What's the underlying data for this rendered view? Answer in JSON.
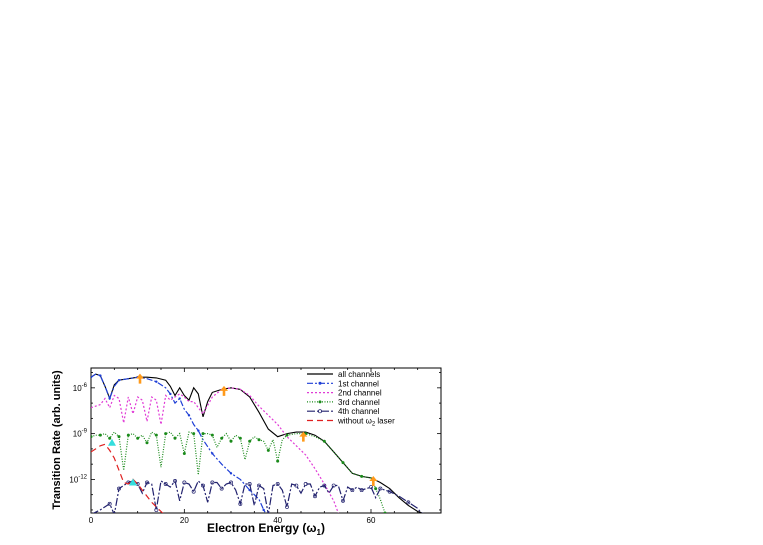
{
  "chart_data": {
    "type": "line",
    "title": "",
    "xlabel": "Electron Energy (ω",
    "xlabel_sub": "1",
    "xlabel_close": ")",
    "ylabel": "Transition Rate (arb. units)",
    "xlim": [
      0,
      75
    ],
    "ylim_log10": [
      -14.2,
      -4.7
    ],
    "yscale": "log",
    "x_ticks": [
      0,
      20,
      40,
      60
    ],
    "y_ticks": [
      {
        "base": "10",
        "exp": "-6",
        "log10": -6
      },
      {
        "base": "10",
        "exp": "-9",
        "log10": -9
      },
      {
        "base": "10",
        "exp": "-12",
        "log10": -12
      }
    ],
    "legend_position": "top-right",
    "grid": false,
    "series": [
      {
        "name": "all channels",
        "color": "#000000",
        "dash": "",
        "marker": "none",
        "x": [
          0,
          1,
          2,
          3,
          4,
          5,
          6,
          8,
          10,
          12,
          14,
          16,
          17,
          18,
          19,
          20,
          21,
          22,
          23,
          24,
          25,
          26,
          28,
          30,
          32,
          34,
          36,
          38,
          40,
          42,
          44,
          46,
          48,
          50,
          52,
          54,
          56,
          58,
          60,
          62,
          64,
          66,
          68,
          70,
          72
        ],
        "log10y": [
          -5.3,
          -5.1,
          -5.2,
          -5.9,
          -6.7,
          -5.8,
          -5.5,
          -5.4,
          -5.3,
          -5.3,
          -5.35,
          -5.5,
          -5.9,
          -6.5,
          -6.0,
          -6.5,
          -6.8,
          -6.0,
          -6.4,
          -7.9,
          -6.9,
          -6.3,
          -6.1,
          -6.0,
          -6.1,
          -6.6,
          -7.6,
          -8.7,
          -9.2,
          -9.0,
          -8.9,
          -8.9,
          -9.1,
          -9.5,
          -10.2,
          -10.9,
          -11.6,
          -11.8,
          -11.9,
          -12.2,
          -12.6,
          -13.2,
          -13.7,
          -14.1,
          -14.3
        ]
      },
      {
        "name": "1st channel",
        "color": "#1f3fd6",
        "dash": "6 2 2 2",
        "marker": "dot",
        "x": [
          0,
          1,
          2,
          3,
          4,
          5,
          6,
          8,
          10,
          12,
          14,
          16,
          17,
          18,
          19,
          20,
          21,
          22,
          23,
          24,
          26,
          28,
          30,
          32,
          34,
          36,
          37,
          38
        ],
        "log10y": [
          -5.3,
          -5.1,
          -5.2,
          -5.9,
          -6.7,
          -5.9,
          -5.5,
          -5.4,
          -5.3,
          -5.4,
          -5.6,
          -6.0,
          -6.4,
          -7.0,
          -6.7,
          -7.4,
          -7.8,
          -8.4,
          -8.8,
          -9.4,
          -10.3,
          -11.0,
          -11.6,
          -12.0,
          -12.7,
          -13.3,
          -14.0,
          -14.5
        ]
      },
      {
        "name": "2nd channel",
        "color": "#e03ad6",
        "dash": "2 2",
        "marker": "none",
        "x": [
          0,
          2,
          3,
          4,
          5,
          6,
          7,
          8,
          9,
          10,
          11,
          12,
          13,
          14,
          15,
          16,
          17,
          18,
          19,
          20,
          21,
          22,
          24,
          26,
          28,
          30,
          32,
          34,
          36,
          38,
          40,
          42,
          44,
          46,
          48,
          50,
          52,
          53
        ],
        "log10y": [
          -7.3,
          -7.1,
          -6.7,
          -7.3,
          -6.5,
          -6.7,
          -8.3,
          -6.6,
          -7.7,
          -6.6,
          -6.8,
          -8.2,
          -6.6,
          -6.8,
          -8.4,
          -6.5,
          -6.8,
          -6.6,
          -6.4,
          -6.6,
          -6.9,
          -6.9,
          -7.7,
          -6.6,
          -6.1,
          -6.0,
          -6.1,
          -6.5,
          -7.2,
          -7.8,
          -8.4,
          -9.2,
          -9.8,
          -10.4,
          -11.3,
          -12.3,
          -13.4,
          -14.2
        ]
      },
      {
        "name": "3rd channel",
        "color": "#1a8a1a",
        "dash": "1 1.5",
        "marker": "star",
        "x": [
          0,
          1,
          2,
          3,
          4,
          5,
          6,
          7,
          8,
          9,
          10,
          11,
          12,
          13,
          14,
          15,
          16,
          17,
          18,
          19,
          20,
          21,
          22,
          23,
          24,
          25,
          26,
          27,
          28,
          29,
          30,
          31,
          32,
          33,
          34,
          35,
          36,
          37,
          38,
          39,
          40,
          41,
          42,
          44,
          46,
          48,
          50,
          52,
          54,
          56,
          58,
          60,
          61,
          62,
          63
        ],
        "log10y": [
          -9.2,
          -9.1,
          -9.1,
          -9.0,
          -9.3,
          -8.9,
          -9.2,
          -11.4,
          -9.1,
          -9.0,
          -9.3,
          -9.1,
          -9.6,
          -8.9,
          -9.1,
          -11.2,
          -9.0,
          -8.9,
          -9.3,
          -9.0,
          -10.3,
          -8.9,
          -9.0,
          -11.7,
          -9.0,
          -9.0,
          -9.1,
          -9.9,
          -9.3,
          -9.0,
          -9.5,
          -9.1,
          -9.3,
          -10.7,
          -9.5,
          -9.2,
          -9.4,
          -9.5,
          -10.1,
          -9.4,
          -10.8,
          -9.4,
          -9.1,
          -9.0,
          -9.0,
          -9.2,
          -9.5,
          -10.2,
          -10.9,
          -11.6,
          -11.8,
          -11.9,
          -12.6,
          -13.3,
          -14.2
        ]
      },
      {
        "name": "4th channel",
        "color": "#22226e",
        "dash": "8 2 2 2",
        "marker": "circle",
        "x": [
          0,
          2,
          4,
          5,
          6,
          7,
          8,
          9,
          10,
          11,
          12,
          13,
          14,
          15,
          16,
          17,
          18,
          19,
          20,
          21,
          22,
          23,
          24,
          25,
          26,
          27,
          28,
          29,
          30,
          31,
          32,
          33,
          34,
          35,
          36,
          37,
          38,
          39,
          40,
          41,
          42,
          43,
          44,
          45,
          46,
          47,
          48,
          49,
          50,
          51,
          52,
          53,
          54,
          55,
          56,
          57,
          58,
          59,
          60,
          61,
          62,
          63,
          64,
          66,
          68,
          70,
          71
        ],
        "log10y": [
          -14.3,
          -14.0,
          -13.6,
          -14.3,
          -12.6,
          -12.4,
          -12.2,
          -12.1,
          -12.3,
          -12.9,
          -12.2,
          -12.3,
          -14.0,
          -12.1,
          -12.3,
          -12.5,
          -12.1,
          -13.4,
          -12.2,
          -12.3,
          -12.8,
          -12.1,
          -12.4,
          -13.5,
          -12.2,
          -12.2,
          -12.6,
          -12.3,
          -12.2,
          -12.7,
          -13.6,
          -12.3,
          -12.3,
          -13.7,
          -12.4,
          -12.6,
          -14.3,
          -12.4,
          -12.3,
          -12.7,
          -13.8,
          -12.3,
          -12.4,
          -12.9,
          -12.3,
          -12.3,
          -13.1,
          -12.5,
          -12.4,
          -12.9,
          -12.4,
          -12.4,
          -13.4,
          -12.5,
          -12.7,
          -12.5,
          -12.7,
          -12.6,
          -12.5,
          -13.2,
          -12.6,
          -12.7,
          -12.8,
          -13.1,
          -13.5,
          -13.9,
          -14.3
        ]
      },
      {
        "name": "without ω",
        "name_sub": "2",
        "name_tail": " laser",
        "color": "#e02020",
        "dash": "6 4",
        "marker": "none",
        "x": [
          0,
          1,
          2,
          3,
          4,
          5,
          6,
          7,
          8,
          9,
          10,
          11,
          12,
          13,
          14,
          15,
          16
        ],
        "log10y": [
          -10.2,
          -10.0,
          -9.8,
          -9.7,
          -10.1,
          -10.6,
          -11.4,
          -12.2,
          -12.3,
          -12.0,
          -12.3,
          -12.7,
          -13.1,
          -13.5,
          -13.8,
          -14.1,
          -14.4
        ]
      }
    ],
    "annotations": {
      "orange_arrows": [
        {
          "x": 10.5,
          "log10y": -5.4
        },
        {
          "x": 28.5,
          "log10y": -6.2
        },
        {
          "x": 45.5,
          "log10y": -9.2
        },
        {
          "x": 60.5,
          "log10y": -12.1
        }
      ],
      "cyan_triangles": [
        {
          "x": 4.5,
          "log10y": -9.6
        },
        {
          "x": 9.0,
          "log10y": -12.2
        }
      ],
      "colors": {
        "arrow": "#ff9a1a",
        "triangle": "#33dddd"
      }
    }
  }
}
